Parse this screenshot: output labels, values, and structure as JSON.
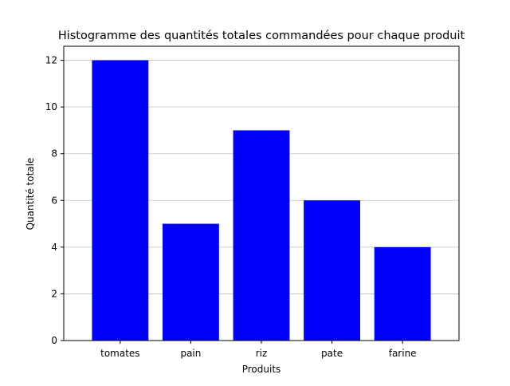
{
  "chart_data": {
    "type": "bar",
    "title": "Histogramme des quantités totales commandées pour chaque produit",
    "xlabel": "Produits",
    "ylabel": "Quantité totale",
    "categories": [
      "tomates",
      "pain",
      "riz",
      "pate",
      "farine"
    ],
    "values": [
      12,
      5,
      9,
      6,
      4
    ],
    "ylim": [
      0,
      12.6
    ],
    "yticks": [
      0,
      2,
      4,
      6,
      8,
      10,
      12
    ],
    "grid": "y",
    "bar_color": "#0000ff",
    "grid_color": "#c0c0c0"
  }
}
